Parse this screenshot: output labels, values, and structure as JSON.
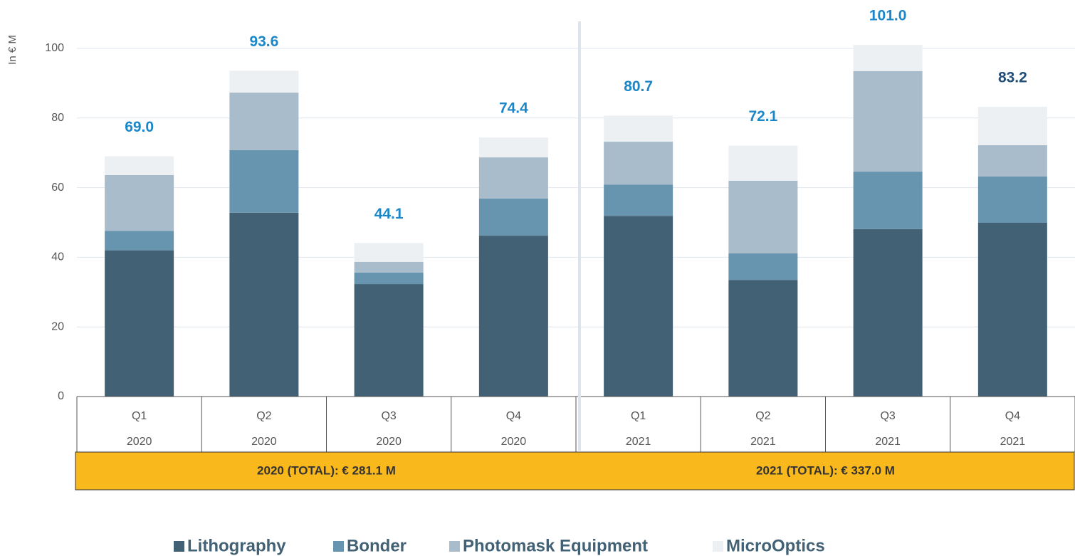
{
  "chart_data": {
    "type": "stacked_bar",
    "y_label": "In € M",
    "categories": [
      "Q1",
      "Q2",
      "Q3",
      "Q4",
      "Q1",
      "Q2",
      "Q3",
      "Q4"
    ],
    "years": [
      "2020",
      "2020",
      "2020",
      "2020",
      "2021",
      "2021",
      "2021",
      "2021"
    ],
    "series": [
      {
        "name": "Lithography",
        "color": "#426174",
        "values": [
          42.0,
          52.8,
          32.3,
          46.2,
          51.9,
          33.5,
          48.1,
          49.9
        ]
      },
      {
        "name": "Bonder",
        "color": "#6794ae",
        "values": [
          5.6,
          18.0,
          3.3,
          10.7,
          9.0,
          7.6,
          16.5,
          13.3
        ]
      },
      {
        "name": "Photomask Equipment",
        "color": "#a8bccb",
        "values": [
          16.0,
          16.5,
          3.1,
          11.8,
          12.3,
          20.9,
          28.9,
          9.0
        ]
      },
      {
        "name": "MicroOptics",
        "color": "#ecf0f3",
        "values": [
          5.4,
          6.3,
          5.4,
          5.7,
          7.5,
          10.1,
          7.5,
          11.0
        ]
      }
    ],
    "totals": [
      69.0,
      93.6,
      44.1,
      74.4,
      80.7,
      72.1,
      101.0,
      83.2
    ],
    "total_labels": [
      "69.0",
      "93.6",
      "44.1",
      "74.4",
      "80.7",
      "72.1",
      "101.0",
      "83.2"
    ],
    "total_label_colors": [
      "#1a87c8",
      "#1a87c8",
      "#1a87c8",
      "#1a87c8",
      "#1a87c8",
      "#1a87c8",
      "#1a87c8",
      "#1f4e79"
    ],
    "annotations": [
      "2020 (TOTAL): € 281.1 M",
      "2021 (TOTAL): € 337.0 M"
    ],
    "ylim": [
      0,
      108
    ],
    "yticks": [
      0,
      20,
      40,
      60,
      80,
      100
    ],
    "grid": true
  }
}
